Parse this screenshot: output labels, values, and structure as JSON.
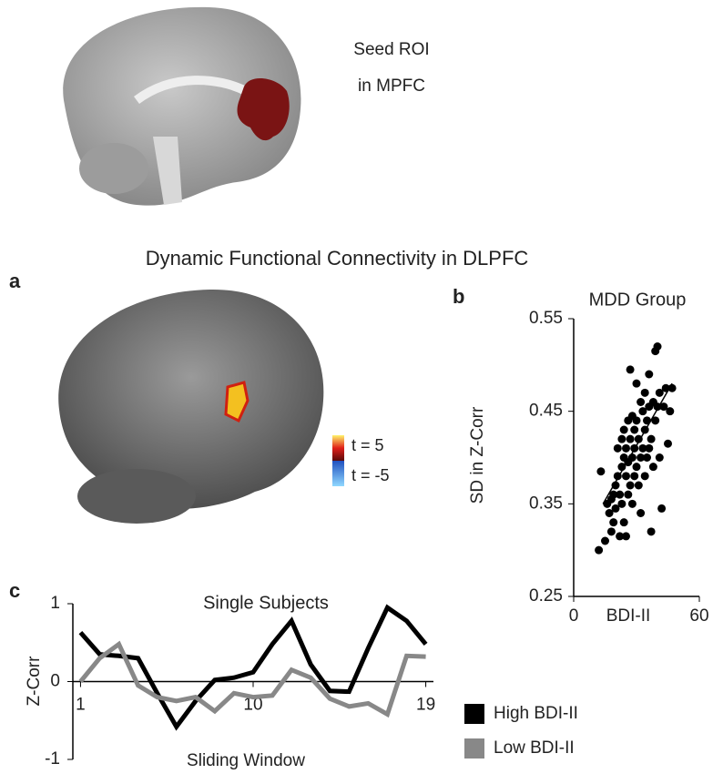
{
  "figure": {
    "seed_label": [
      "Seed ROI",
      "in MPFC"
    ],
    "heading": "Dynamic Functional Connectivity in DLPFC",
    "panels": [
      "a",
      "b",
      "c"
    ],
    "colorbar_labels": [
      "t = 5",
      "t = -5"
    ]
  },
  "chart_data": [
    {
      "type": "scatter",
      "title": "MDD Group",
      "x_label": "BDI-II",
      "y_label": "SD in Z-Corr",
      "xlim": [
        0,
        60
      ],
      "xticks": [
        0,
        60
      ],
      "ylim": [
        0.25,
        0.55
      ],
      "yticks": [
        0.25,
        0.35,
        0.45,
        0.55
      ],
      "color": "#000000",
      "x": [
        12,
        13,
        15,
        16,
        17,
        18,
        18,
        19,
        19,
        20,
        20,
        21,
        21,
        22,
        22,
        23,
        23,
        23,
        24,
        24,
        24,
        25,
        25,
        25,
        26,
        26,
        26,
        27,
        27,
        27,
        28,
        28,
        28,
        29,
        29,
        29,
        30,
        30,
        30,
        31,
        31,
        32,
        32,
        32,
        33,
        33,
        34,
        34,
        34,
        35,
        35,
        36,
        36,
        36,
        37,
        37,
        38,
        38,
        39,
        39,
        40,
        40,
        41,
        41,
        42,
        43,
        44,
        45,
        46,
        47
      ],
      "y": [
        0.3,
        0.385,
        0.31,
        0.35,
        0.34,
        0.355,
        0.32,
        0.36,
        0.33,
        0.37,
        0.345,
        0.38,
        0.41,
        0.36,
        0.315,
        0.39,
        0.42,
        0.35,
        0.4,
        0.43,
        0.33,
        0.41,
        0.38,
        0.315,
        0.44,
        0.395,
        0.36,
        0.495,
        0.42,
        0.37,
        0.445,
        0.4,
        0.35,
        0.43,
        0.41,
        0.38,
        0.48,
        0.44,
        0.39,
        0.42,
        0.37,
        0.46,
        0.4,
        0.34,
        0.45,
        0.41,
        0.47,
        0.43,
        0.38,
        0.44,
        0.4,
        0.49,
        0.455,
        0.41,
        0.42,
        0.32,
        0.46,
        0.39,
        0.515,
        0.44,
        0.52,
        0.455,
        0.47,
        0.4,
        0.345,
        0.455,
        0.475,
        0.415,
        0.45,
        0.475
      ],
      "fit_line": {
        "x": [
          14,
          47
        ],
        "y": [
          0.35,
          0.48
        ]
      }
    },
    {
      "type": "line",
      "title": "Single Subjects",
      "x_label": "Sliding Window",
      "y_label": "Z-Corr",
      "xlim": [
        0.6,
        19.4
      ],
      "xticks": [
        1,
        10,
        19
      ],
      "ylim": [
        -1,
        1
      ],
      "yticks": [
        -1,
        0,
        1
      ],
      "legend": "right",
      "x": [
        1,
        2,
        3,
        4,
        5,
        6,
        7,
        8,
        9,
        10,
        11,
        12,
        13,
        14,
        15,
        16,
        17,
        18,
        19
      ],
      "series": [
        {
          "name": "High BDI-II",
          "color": "#000000",
          "values": [
            0.63,
            0.35,
            0.33,
            0.3,
            -0.15,
            -0.58,
            -0.25,
            0.02,
            0.05,
            0.12,
            0.48,
            0.78,
            0.22,
            -0.12,
            -0.13,
            0.43,
            0.95,
            0.78,
            0.48
          ]
        },
        {
          "name": "Low BDI-II",
          "color": "#888888",
          "values": [
            0.0,
            0.3,
            0.48,
            -0.05,
            -0.2,
            -0.25,
            -0.2,
            -0.38,
            -0.15,
            -0.2,
            -0.18,
            0.15,
            0.05,
            -0.22,
            -0.32,
            -0.28,
            -0.42,
            0.33,
            0.32
          ]
        }
      ]
    }
  ]
}
